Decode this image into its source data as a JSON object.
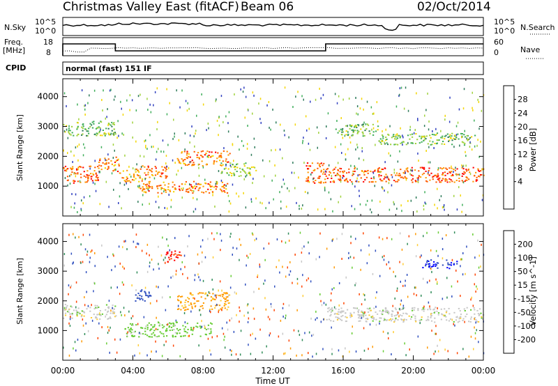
{
  "header": {
    "title": "Christmas Valley East (fitACF)",
    "beam": "Beam 06",
    "date": "02/Oct/2014"
  },
  "noise_panel": {
    "left_label": "N.Sky",
    "left_ticks": [
      "10^5",
      "10^0"
    ],
    "right_label": "N.Search",
    "right_ticks": [
      "10^5",
      "10^0"
    ]
  },
  "freq_panel": {
    "left_label_1": "Freq.",
    "left_label_2": "[MHz]",
    "left_ticks": [
      "18",
      "8"
    ],
    "right_label": "Nave",
    "right_ticks": [
      "60",
      "0"
    ]
  },
  "cpid": {
    "label": "CPID",
    "text": "normal (fast) 151 IF"
  },
  "chart_data": [
    {
      "type": "heatmap",
      "panel": "power",
      "ylabel": "Slant Range [km]",
      "yticks": [
        "4000",
        "3000",
        "2000",
        "1000"
      ],
      "xtick_labels": [
        "00:00",
        "04:00",
        "08:00",
        "12:00",
        "16:00",
        "20:00",
        "00:00"
      ],
      "colorbar": {
        "label": "Power [dB]",
        "ticks": [
          "28",
          "24",
          "20",
          "16",
          "12",
          "8",
          "4"
        ],
        "colors": [
          "#ff0000",
          "#ff5a00",
          "#ff9a00",
          "#f4d600",
          "#9fd23c",
          "#3fae5a",
          "#2e7b5a",
          "#2f3fbf",
          "#0000ff"
        ]
      },
      "bands": [
        {
          "x": [
            0.0,
            2.0
          ],
          "y": [
            1100,
            1700
          ],
          "level": 26
        },
        {
          "x": [
            2.0,
            3.2
          ],
          "y": [
            1500,
            2000
          ],
          "level": 24
        },
        {
          "x": [
            3.2,
            4.5
          ],
          "y": [
            1150,
            1600
          ],
          "level": 22
        },
        {
          "x": [
            4.5,
            6.0
          ],
          "y": [
            1250,
            1700
          ],
          "level": 24
        },
        {
          "x": [
            4.3,
            9.5
          ],
          "y": [
            780,
            1180
          ],
          "level": 24
        },
        {
          "x": [
            6.5,
            9.5
          ],
          "y": [
            1700,
            2200
          ],
          "level": 24
        },
        {
          "x": [
            9.0,
            11.0
          ],
          "y": [
            1350,
            1800
          ],
          "level": 14
        },
        {
          "x": [
            13.8,
            15.0
          ],
          "y": [
            1100,
            1800
          ],
          "level": 26
        },
        {
          "x": [
            15.0,
            24.0
          ],
          "y": [
            1150,
            1650
          ],
          "level": 26
        },
        {
          "x": [
            0.0,
            3.0
          ],
          "y": [
            2700,
            3200
          ],
          "level": 12
        },
        {
          "x": [
            15.5,
            18.0
          ],
          "y": [
            2700,
            3100
          ],
          "level": 12
        },
        {
          "x": [
            18.0,
            23.5
          ],
          "y": [
            2400,
            2800
          ],
          "level": 12
        }
      ]
    },
    {
      "type": "heatmap",
      "panel": "velocity",
      "ylabel": "Slant Range [km]",
      "yticks": [
        "4000",
        "3000",
        "2000",
        "1000"
      ],
      "xlabel": "Time UT",
      "xtick_labels": [
        "00:00",
        "04:00",
        "08:00",
        "12:00",
        "16:00",
        "20:00",
        "00:00"
      ],
      "colorbar": {
        "label": "Velocity [m s^-1]",
        "ticks": [
          "200",
          "100",
          "50",
          "15",
          "-15",
          "-50",
          "-100",
          "-200"
        ],
        "colors": [
          "#0000ff",
          "#2f4fbf",
          "#2e8b57",
          "#66cc33",
          "#c8c8c8",
          "#ffcc33",
          "#ff9a00",
          "#ff4400",
          "#ff0000"
        ]
      },
      "bands": [
        {
          "x": [
            0.0,
            3.0
          ],
          "y": [
            1400,
            1900
          ],
          "level": 0
        },
        {
          "x": [
            3.5,
            8.5
          ],
          "y": [
            800,
            1300
          ],
          "level": 30
        },
        {
          "x": [
            6.5,
            9.5
          ],
          "y": [
            1700,
            2300
          ],
          "level": -60
        },
        {
          "x": [
            4.0,
            5.0
          ],
          "y": [
            2000,
            2400
          ],
          "level": 150
        },
        {
          "x": [
            5.8,
            6.8
          ],
          "y": [
            3300,
            3700
          ],
          "level": -200
        },
        {
          "x": [
            15.0,
            24.0
          ],
          "y": [
            1300,
            1800
          ],
          "level": 0
        },
        {
          "x": [
            20.5,
            22.5
          ],
          "y": [
            3100,
            3400
          ],
          "level": 200
        }
      ]
    }
  ]
}
